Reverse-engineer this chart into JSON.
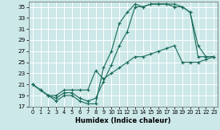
{
  "xlabel": "Humidex (Indice chaleur)",
  "bg_color": "#cce8e8",
  "grid_color": "#ffffff",
  "line_color": "#1a6b5a",
  "xlim": [
    -0.5,
    23.5
  ],
  "ylim": [
    17,
    36
  ],
  "yticks": [
    17,
    19,
    21,
    23,
    25,
    27,
    29,
    31,
    33,
    35
  ],
  "xticks": [
    0,
    1,
    2,
    3,
    4,
    5,
    6,
    7,
    8,
    9,
    10,
    11,
    12,
    13,
    14,
    15,
    16,
    17,
    18,
    19,
    20,
    21,
    22,
    23
  ],
  "curve1_x": [
    0,
    1,
    2,
    3,
    4,
    5,
    6,
    7,
    8,
    9,
    10,
    11,
    12,
    13,
    14,
    15,
    16,
    17,
    18,
    19,
    20,
    21,
    22,
    23
  ],
  "curve1_y": [
    21,
    20,
    19,
    18,
    19,
    19,
    18,
    17.5,
    17.5,
    24,
    27,
    32,
    34,
    35.5,
    35,
    35.5,
    35.5,
    35.5,
    35.5,
    35,
    34,
    28,
    26,
    26
  ],
  "curve2_x": [
    0,
    1,
    2,
    3,
    4,
    5,
    6,
    7,
    8,
    9,
    10,
    11,
    12,
    13,
    14,
    15,
    16,
    17,
    18,
    19,
    20,
    21,
    22,
    23
  ],
  "curve2_y": [
    21,
    20,
    19,
    18.5,
    19.5,
    19.5,
    18.5,
    18,
    18.5,
    21.5,
    24.5,
    28,
    30.5,
    35,
    35,
    35.5,
    35.5,
    35.5,
    35,
    35,
    34,
    26,
    26,
    26
  ],
  "curve3_x": [
    0,
    1,
    2,
    3,
    4,
    5,
    6,
    7,
    8,
    9,
    10,
    11,
    12,
    13,
    14,
    15,
    16,
    17,
    18,
    19,
    20,
    21,
    22,
    23
  ],
  "curve3_y": [
    21,
    20,
    19,
    19,
    20,
    20,
    20,
    20,
    23.5,
    22,
    23,
    24,
    25,
    26,
    26,
    26.5,
    27,
    27.5,
    28,
    25,
    25,
    25,
    25.5,
    26
  ]
}
